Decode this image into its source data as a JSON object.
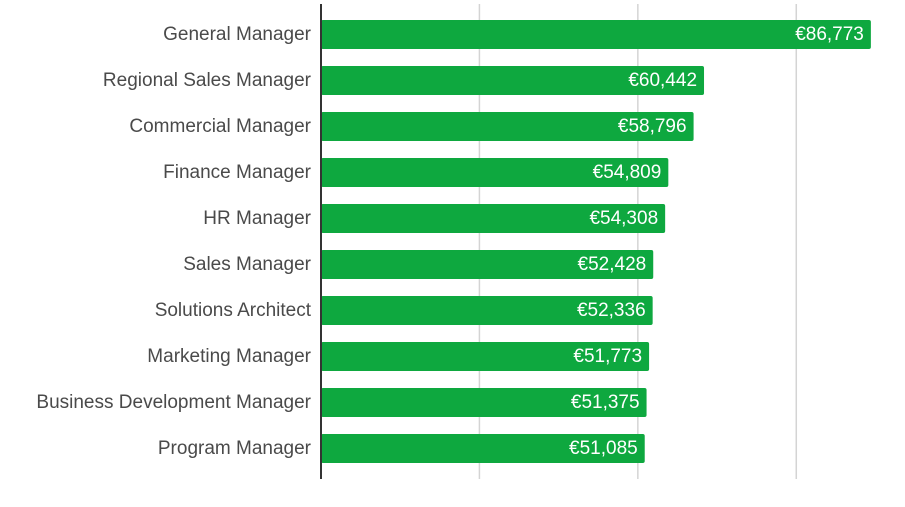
{
  "chart_data": {
    "type": "bar",
    "orientation": "horizontal",
    "title": "",
    "xlabel": "",
    "ylabel": "",
    "xlim": [
      0,
      90000
    ],
    "grid": true,
    "bar_color": "#0ea83f",
    "value_prefix": "€",
    "categories": [
      "General Manager",
      "Regional Sales Manager",
      "Commercial Manager",
      "Finance Manager",
      "HR Manager",
      "Sales Manager",
      "Solutions Architect",
      "Marketing Manager",
      "Business Development Manager",
      "Program Manager"
    ],
    "values": [
      86773,
      60442,
      58796,
      54809,
      54308,
      52428,
      52336,
      51773,
      51375,
      51085
    ],
    "value_labels": [
      "€86,773",
      "€60,442",
      "€58,796",
      "€54,809",
      "€54,308",
      "€52,428",
      "€52,336",
      "€51,773",
      "€51,375",
      "€51,085"
    ]
  }
}
